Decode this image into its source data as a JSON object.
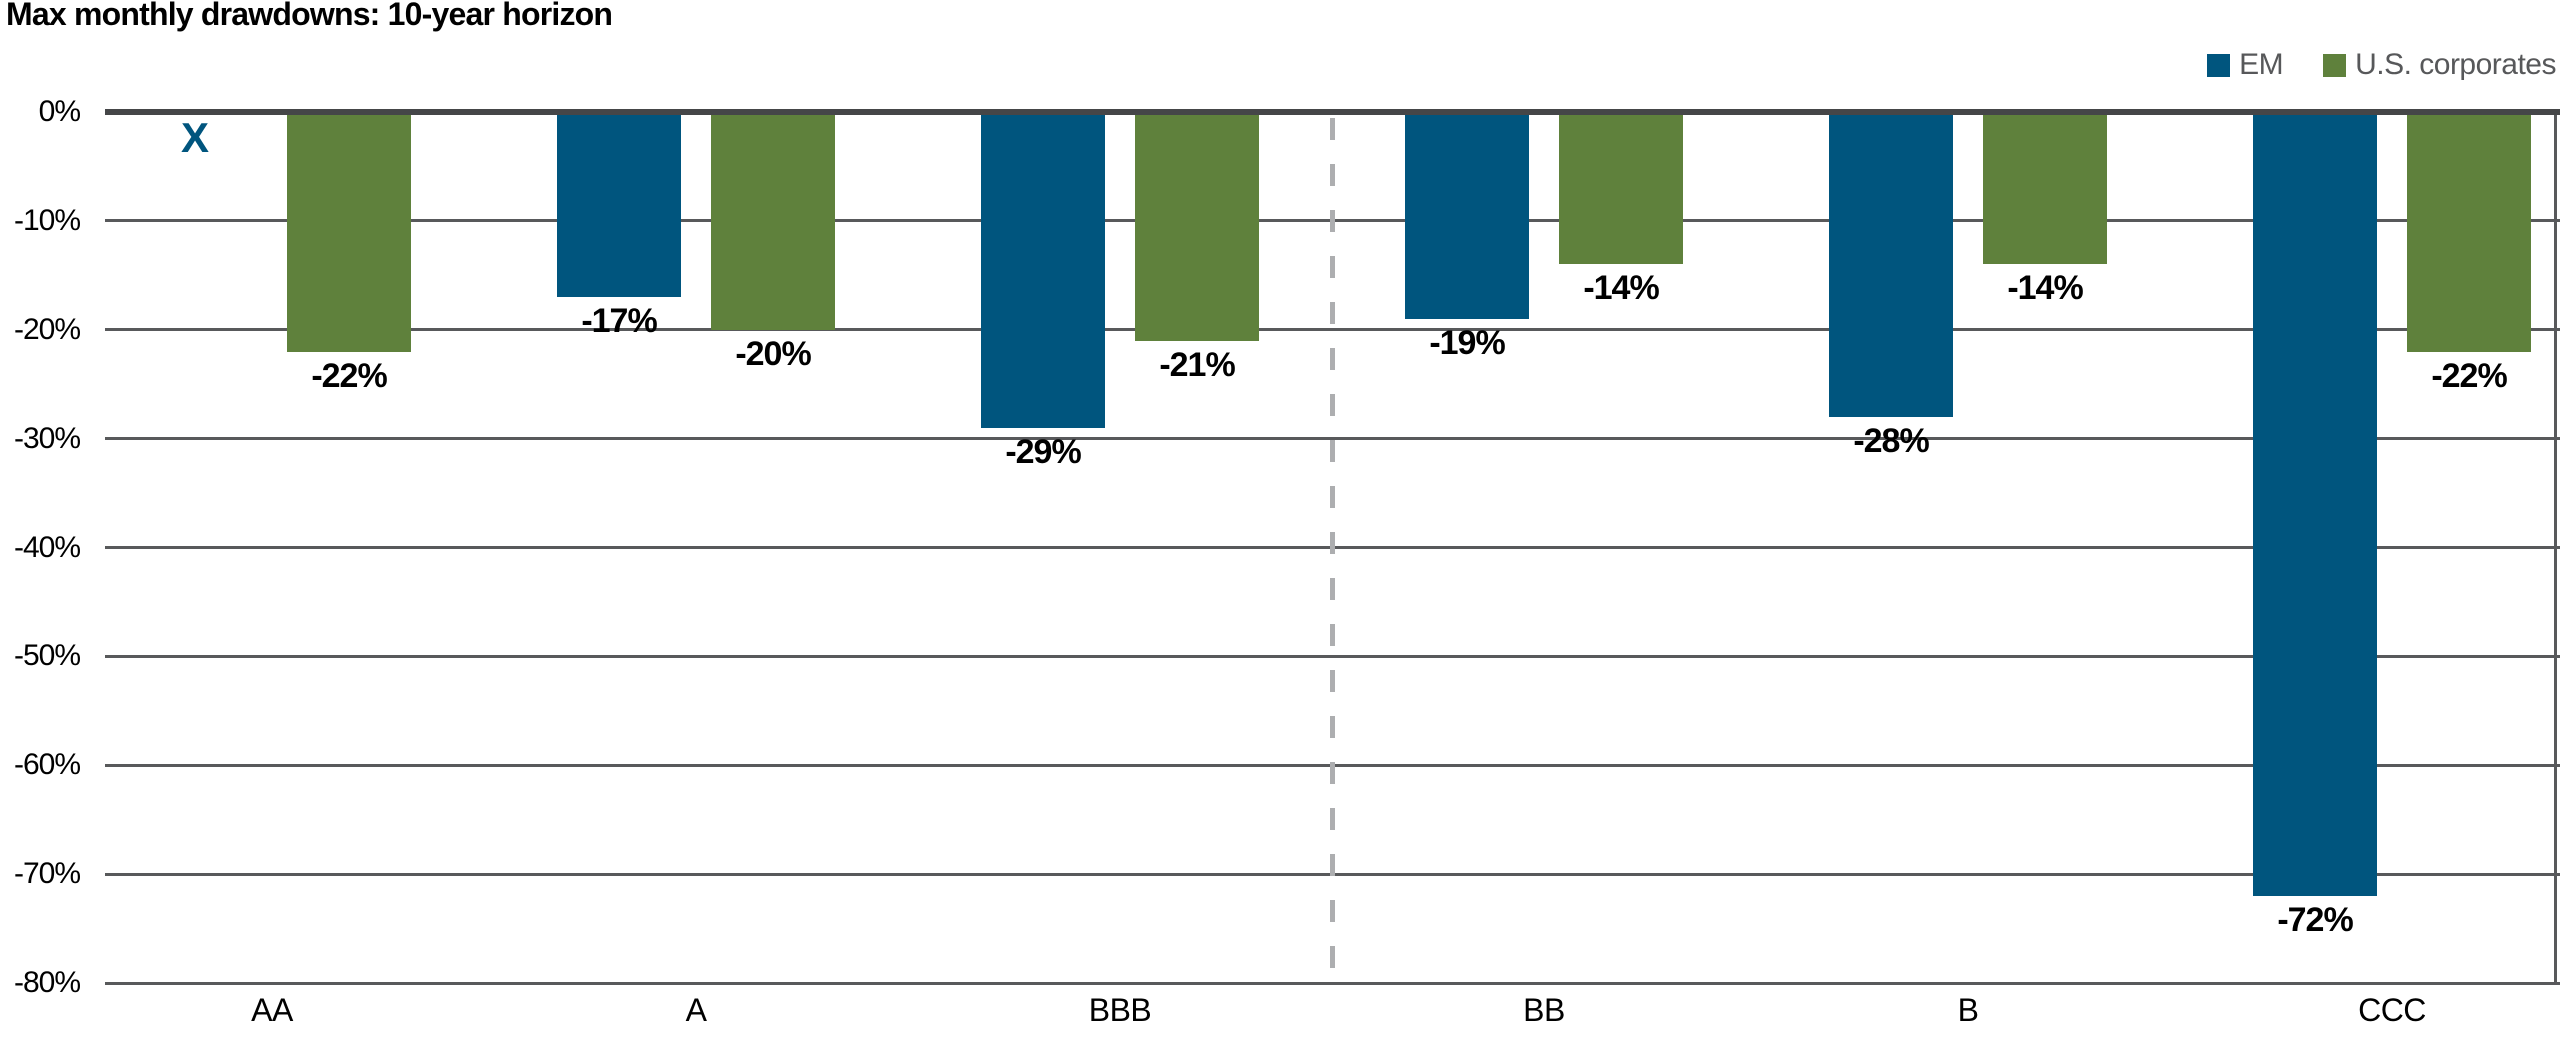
{
  "chart_data": {
    "type": "bar",
    "title": "Max monthly drawdowns: 10-year horizon",
    "categories": [
      "AA",
      "A",
      "BBB",
      "BB",
      "B",
      "CCC"
    ],
    "series": [
      {
        "name": "EM",
        "color": "#00557E",
        "values": [
          null,
          -17,
          -29,
          -19,
          -28,
          -72
        ],
        "labels": [
          "",
          "-17%",
          "-29%",
          "-19%",
          "-28%",
          "-72%"
        ]
      },
      {
        "name": "U.S. corporates",
        "color": "#5F813C",
        "values": [
          -22,
          -20,
          -21,
          -14,
          -14,
          -22
        ],
        "labels": [
          "-22%",
          "-20%",
          "-21%",
          "-14%",
          "-14%",
          "-22%"
        ]
      }
    ],
    "missing_marker": {
      "series": "EM",
      "category": "AA",
      "symbol": "X"
    },
    "ylim": [
      -80,
      0
    ],
    "yticks": [
      {
        "value": 0,
        "label": "0%"
      },
      {
        "value": -10,
        "label": "-10%"
      },
      {
        "value": -20,
        "label": "-20%"
      },
      {
        "value": -30,
        "label": "-30%"
      },
      {
        "value": -40,
        "label": "-40%"
      },
      {
        "value": -50,
        "label": "-50%"
      },
      {
        "value": -60,
        "label": "-60%"
      },
      {
        "value": -70,
        "label": "-70%"
      },
      {
        "value": -80,
        "label": "-80%"
      }
    ],
    "grid": true,
    "legend_position": "top-right",
    "divider_after_category": "BBB",
    "colors": {
      "gridline": "#58595B",
      "zero_axis": "#454648",
      "divider_dash": "#ADAEB0",
      "legend_text": "#57585A",
      "label_text": "#000000"
    }
  }
}
